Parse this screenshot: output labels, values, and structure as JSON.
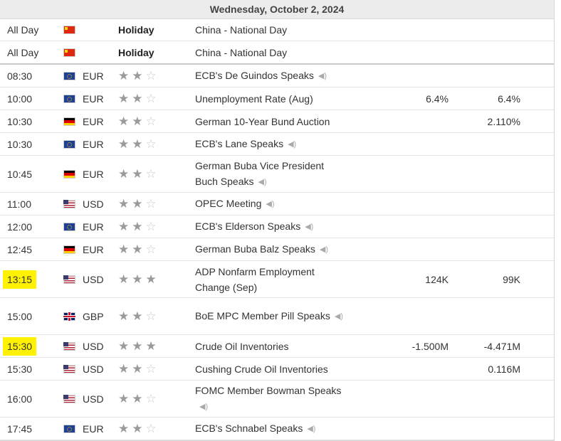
{
  "date_header": "Wednesday, October 2, 2024",
  "rows": [
    {
      "time": "All Day",
      "flag": "cn",
      "currency": "",
      "importance_label": "Holiday",
      "event": "China - National Day",
      "forecast": "",
      "previous": ""
    },
    {
      "time": "All Day",
      "flag": "cn",
      "currency": "",
      "importance_label": "Holiday",
      "event": "China - National Day",
      "forecast": "",
      "previous": ""
    },
    {
      "time": "08:30",
      "flag": "eu",
      "currency": "EUR",
      "stars": 2,
      "event": "ECB's De Guindos Speaks",
      "speech": true,
      "forecast": "",
      "previous": ""
    },
    {
      "time": "10:00",
      "flag": "eu",
      "currency": "EUR",
      "stars": 2,
      "event": "Unemployment Rate (Aug)",
      "forecast": "6.4%",
      "previous": "6.4%"
    },
    {
      "time": "10:30",
      "flag": "de",
      "currency": "EUR",
      "stars": 2,
      "event": "German 10-Year Bund Auction",
      "forecast": "",
      "previous": "2.110%"
    },
    {
      "time": "10:30",
      "flag": "eu",
      "currency": "EUR",
      "stars": 2,
      "event": "ECB's Lane Speaks",
      "speech": true,
      "forecast": "",
      "previous": ""
    },
    {
      "time": "10:45",
      "flag": "de",
      "currency": "EUR",
      "stars": 2,
      "event": "German Buba Vice President Buch Speaks",
      "speech": true,
      "forecast": "",
      "previous": ""
    },
    {
      "time": "11:00",
      "flag": "us",
      "currency": "USD",
      "stars": 2,
      "event": "OPEC Meeting",
      "speech": true,
      "forecast": "",
      "previous": ""
    },
    {
      "time": "12:00",
      "flag": "eu",
      "currency": "EUR",
      "stars": 2,
      "event": "ECB's Elderson Speaks",
      "speech": true,
      "forecast": "",
      "previous": ""
    },
    {
      "time": "12:45",
      "flag": "de",
      "currency": "EUR",
      "stars": 2,
      "event": "German Buba Balz Speaks",
      "speech": true,
      "forecast": "",
      "previous": ""
    },
    {
      "time": "13:15",
      "highlight": true,
      "flag": "us",
      "currency": "USD",
      "stars": 3,
      "event": "ADP Nonfarm Employment Change (Sep)",
      "forecast": "124K",
      "previous": "99K"
    },
    {
      "time": "15:00",
      "flag": "gb",
      "currency": "GBP",
      "stars": 2,
      "event": "BoE MPC Member Pill Speaks",
      "speech": true,
      "forecast": "",
      "previous": ""
    },
    {
      "time": "15:30",
      "highlight": true,
      "flag": "us",
      "currency": "USD",
      "stars": 3,
      "event": "Crude Oil Inventories",
      "forecast": "-1.500M",
      "previous": "-4.471M"
    },
    {
      "time": "15:30",
      "flag": "us",
      "currency": "USD",
      "stars": 2,
      "event": "Cushing Crude Oil Inventories",
      "forecast": "",
      "previous": "0.116M"
    },
    {
      "time": "16:00",
      "flag": "us",
      "currency": "USD",
      "stars": 2,
      "event": "FOMC Member Bowman Speaks",
      "speech": true,
      "forecast": "",
      "previous": ""
    },
    {
      "time": "17:45",
      "flag": "eu",
      "currency": "EUR",
      "stars": 2,
      "event": "ECB's Schnabel Speaks",
      "speech": true,
      "forecast": "",
      "previous": ""
    }
  ]
}
